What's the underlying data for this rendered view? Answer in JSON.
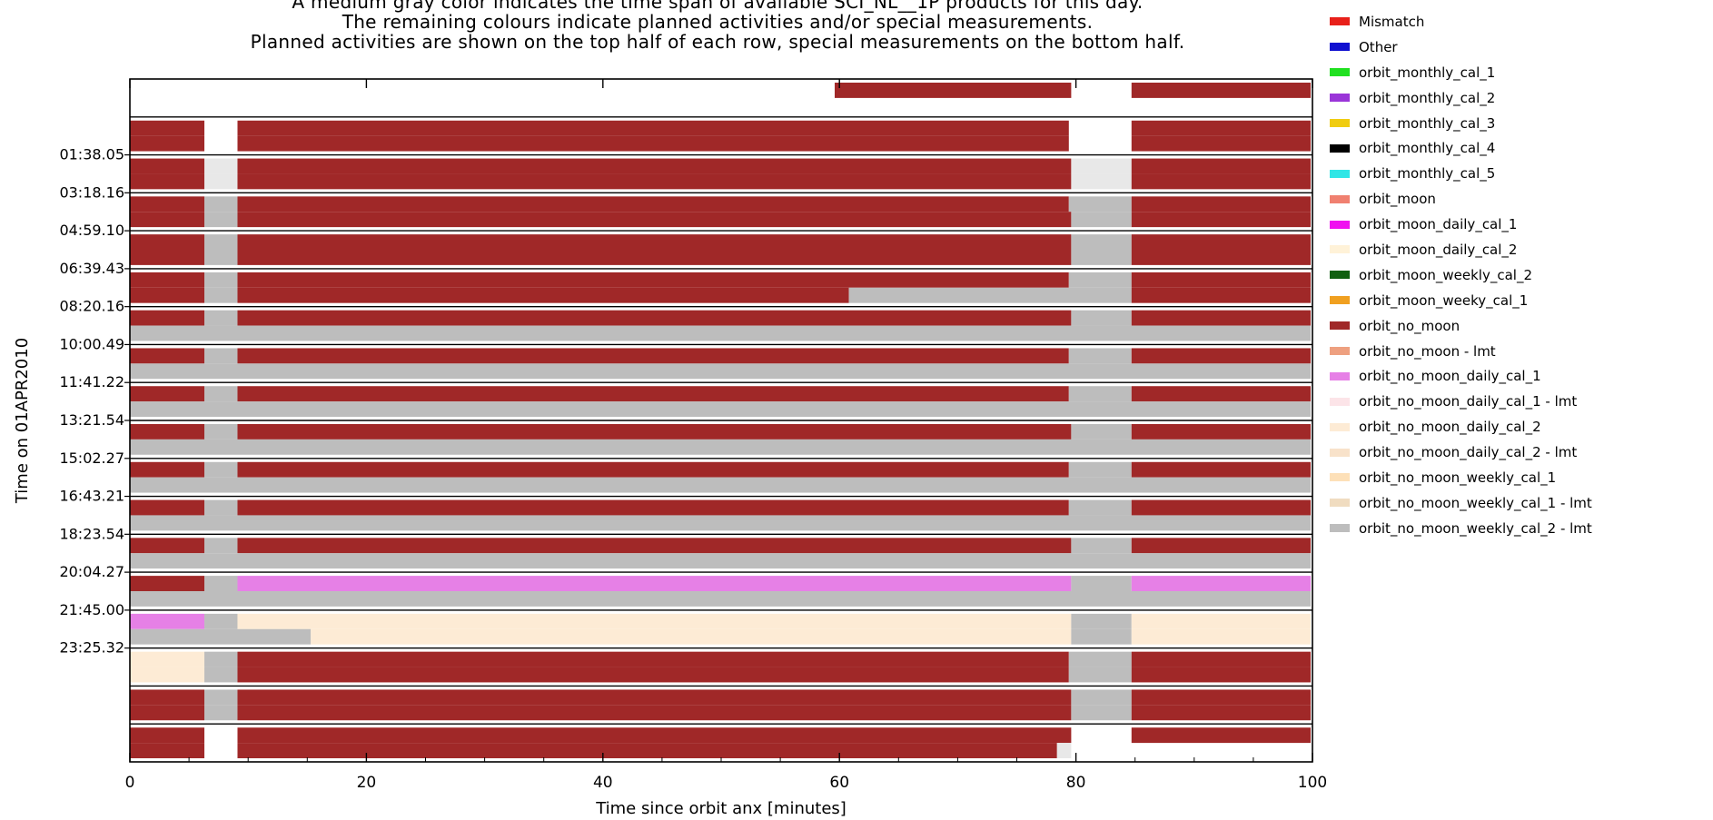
{
  "header": {
    "lines": [
      "A medium gray color indicates the time span of available SCI_NL__1P products for this day.",
      "The remaining colours indicate planned activities and/or special measurements.",
      "Planned activities are shown on the top half of each row, special measurements on the bottom half."
    ]
  },
  "legend": [
    {
      "label": "Mismatch",
      "color": "#e8201a"
    },
    {
      "label": "Other",
      "color": "#1010d0"
    },
    {
      "label": "orbit_monthly_cal_1",
      "color": "#20e020"
    },
    {
      "label": "orbit_monthly_cal_2",
      "color": "#9a35d8"
    },
    {
      "label": "orbit_monthly_cal_3",
      "color": "#f0cc10"
    },
    {
      "label": "orbit_monthly_cal_4",
      "color": "#000000"
    },
    {
      "label": "orbit_monthly_cal_5",
      "color": "#30e6e6"
    },
    {
      "label": "orbit_moon",
      "color": "#f08070"
    },
    {
      "label": "orbit_moon_daily_cal_1",
      "color": "#f010f0"
    },
    {
      "label": "orbit_moon_daily_cal_2",
      "color": "#fff2d8"
    },
    {
      "label": "orbit_moon_weekly_cal_2",
      "color": "#106010"
    },
    {
      "label": "orbit_moon_weeky_cal_1",
      "color": "#f0a020"
    },
    {
      "label": "orbit_no_moon",
      "color": "#a02828"
    },
    {
      "label": "orbit_no_moon - lmt",
      "color": "#eea080"
    },
    {
      "label": "orbit_no_moon_daily_cal_1",
      "color": "#e680e6"
    },
    {
      "label": "orbit_no_moon_daily_cal_1 - lmt",
      "color": "#fce4e8"
    },
    {
      "label": "orbit_no_moon_daily_cal_2",
      "color": "#fdebd5"
    },
    {
      "label": "orbit_no_moon_daily_cal_2 - lmt",
      "color": "#f8e2ca"
    },
    {
      "label": "orbit_no_moon_weekly_cal_1",
      "color": "#fde0b8"
    },
    {
      "label": "orbit_no_moon_weekly_cal_1 - lmt",
      "color": "#f0dcc0"
    },
    {
      "label": "orbit_no_moon_weekly_cal_2 - lmt",
      "color": "#bdbdbd"
    }
  ],
  "chart_data": {
    "type": "timeline",
    "xlabel": "Time since orbit anx [minutes]",
    "ylabel": "Time on 01APR2010",
    "xlim": [
      0,
      100
    ],
    "xticks": [
      0,
      20,
      40,
      60,
      80,
      100
    ],
    "yticks": [
      "01:38.05",
      "03:18.16",
      "04:59.10",
      "06:39.43",
      "08:20.16",
      "10:00.49",
      "11:41.22",
      "13:21.54",
      "15:02.27",
      "16:43.21",
      "18:23.54",
      "20:04.27",
      "21:45.00",
      "23:25.32"
    ],
    "colors": {
      "nm": "#a02828",
      "gray": "#bdbdbd",
      "lgray": "#e8e8e8",
      "pink": "#e680e6",
      "cream": "#fdebd5"
    },
    "rows": [
      {
        "top": [
          [
            59.6,
            79.6,
            "nm"
          ],
          [
            84.7,
            100.8,
            "nm"
          ]
        ],
        "bottom": []
      },
      {
        "top": [
          [
            0,
            6.3,
            "nm"
          ],
          [
            9.1,
            79.4,
            "nm"
          ],
          [
            84.7,
            100.8,
            "nm"
          ]
        ],
        "bottom": [
          [
            0,
            6.3,
            "nm"
          ],
          [
            9.1,
            79.4,
            "nm"
          ],
          [
            84.7,
            100.8,
            "nm"
          ]
        ]
      },
      {
        "top": [
          [
            0,
            6.3,
            "nm"
          ],
          [
            6.3,
            9.1,
            "lgray"
          ],
          [
            9.1,
            79.6,
            "nm"
          ],
          [
            79.6,
            84.7,
            "lgray"
          ],
          [
            84.7,
            100.8,
            "nm"
          ]
        ],
        "bottom": [
          [
            0,
            6.3,
            "nm"
          ],
          [
            6.3,
            9.1,
            "lgray"
          ],
          [
            9.1,
            79.6,
            "nm"
          ],
          [
            79.6,
            84.7,
            "lgray"
          ],
          [
            84.7,
            100.8,
            "nm"
          ]
        ]
      },
      {
        "top": [
          [
            0,
            6.3,
            "nm"
          ],
          [
            6.3,
            9.1,
            "gray"
          ],
          [
            9.1,
            79.4,
            "nm"
          ],
          [
            79.4,
            84.7,
            "gray"
          ],
          [
            84.7,
            100.8,
            "nm"
          ]
        ],
        "bottom": [
          [
            0,
            6.3,
            "nm"
          ],
          [
            6.3,
            9.1,
            "gray"
          ],
          [
            9.1,
            79.6,
            "nm"
          ],
          [
            79.6,
            84.7,
            "gray"
          ],
          [
            84.7,
            100.8,
            "nm"
          ]
        ]
      },
      {
        "top": [
          [
            0,
            6.3,
            "nm"
          ],
          [
            6.3,
            9.1,
            "gray"
          ],
          [
            9.1,
            79.6,
            "nm"
          ],
          [
            79.6,
            84.7,
            "gray"
          ],
          [
            84.7,
            100.8,
            "nm"
          ]
        ],
        "bottom": [
          [
            0,
            6.3,
            "nm"
          ],
          [
            6.3,
            9.1,
            "gray"
          ],
          [
            9.1,
            79.6,
            "nm"
          ],
          [
            79.6,
            84.7,
            "gray"
          ],
          [
            84.7,
            100.8,
            "nm"
          ]
        ]
      },
      {
        "top": [
          [
            0,
            6.3,
            "nm"
          ],
          [
            6.3,
            9.1,
            "gray"
          ],
          [
            9.1,
            79.4,
            "nm"
          ],
          [
            79.4,
            84.7,
            "gray"
          ],
          [
            84.7,
            100.8,
            "nm"
          ]
        ],
        "bottom": [
          [
            0,
            6.3,
            "nm"
          ],
          [
            6.3,
            9.1,
            "gray"
          ],
          [
            9.1,
            60.8,
            "nm"
          ],
          [
            60.8,
            84.7,
            "gray"
          ],
          [
            84.7,
            100.8,
            "nm"
          ]
        ]
      },
      {
        "top": [
          [
            0,
            6.3,
            "nm"
          ],
          [
            6.3,
            9.1,
            "gray"
          ],
          [
            9.1,
            79.6,
            "nm"
          ],
          [
            79.6,
            84.7,
            "gray"
          ],
          [
            84.7,
            100.8,
            "nm"
          ]
        ],
        "bottom": [
          [
            0,
            100.8,
            "gray"
          ]
        ]
      },
      {
        "top": [
          [
            0,
            6.3,
            "nm"
          ],
          [
            6.3,
            9.1,
            "gray"
          ],
          [
            9.1,
            79.4,
            "nm"
          ],
          [
            79.4,
            84.7,
            "gray"
          ],
          [
            84.7,
            100.8,
            "nm"
          ]
        ],
        "bottom": [
          [
            0,
            100.8,
            "gray"
          ]
        ]
      },
      {
        "top": [
          [
            0,
            6.3,
            "nm"
          ],
          [
            6.3,
            9.1,
            "gray"
          ],
          [
            9.1,
            79.4,
            "nm"
          ],
          [
            79.4,
            84.7,
            "gray"
          ],
          [
            84.7,
            100.8,
            "nm"
          ]
        ],
        "bottom": [
          [
            0,
            100.8,
            "gray"
          ]
        ]
      },
      {
        "top": [
          [
            0,
            6.3,
            "nm"
          ],
          [
            6.3,
            9.1,
            "gray"
          ],
          [
            9.1,
            79.6,
            "nm"
          ],
          [
            79.6,
            84.7,
            "gray"
          ],
          [
            84.7,
            100.8,
            "nm"
          ]
        ],
        "bottom": [
          [
            0,
            100.8,
            "gray"
          ]
        ]
      },
      {
        "top": [
          [
            0,
            6.3,
            "nm"
          ],
          [
            6.3,
            9.1,
            "gray"
          ],
          [
            9.1,
            79.4,
            "nm"
          ],
          [
            79.4,
            84.7,
            "gray"
          ],
          [
            84.7,
            100.8,
            "nm"
          ]
        ],
        "bottom": [
          [
            0,
            100.8,
            "gray"
          ]
        ]
      },
      {
        "top": [
          [
            0,
            6.3,
            "nm"
          ],
          [
            6.3,
            9.1,
            "gray"
          ],
          [
            9.1,
            79.4,
            "nm"
          ],
          [
            79.4,
            84.7,
            "gray"
          ],
          [
            84.7,
            100.8,
            "nm"
          ]
        ],
        "bottom": [
          [
            0,
            100.8,
            "gray"
          ]
        ]
      },
      {
        "top": [
          [
            0,
            6.3,
            "nm"
          ],
          [
            6.3,
            9.1,
            "gray"
          ],
          [
            9.1,
            79.6,
            "nm"
          ],
          [
            79.6,
            84.7,
            "gray"
          ],
          [
            84.7,
            100.8,
            "nm"
          ]
        ],
        "bottom": [
          [
            0,
            100.8,
            "gray"
          ]
        ]
      },
      {
        "top": [
          [
            0,
            6.3,
            "nm"
          ],
          [
            6.3,
            9.1,
            "gray"
          ],
          [
            9.1,
            79.6,
            "pink"
          ],
          [
            79.6,
            84.7,
            "gray"
          ],
          [
            84.7,
            100.8,
            "pink"
          ]
        ],
        "bottom": [
          [
            0,
            100.8,
            "gray"
          ]
        ]
      },
      {
        "top": [
          [
            0,
            6.3,
            "pink"
          ],
          [
            6.3,
            9.1,
            "gray"
          ],
          [
            9.1,
            79.6,
            "cream"
          ],
          [
            79.6,
            84.7,
            "gray"
          ],
          [
            84.7,
            100.8,
            "cream"
          ]
        ],
        "bottom": [
          [
            0,
            15.3,
            "gray"
          ],
          [
            15.3,
            79.6,
            "cream"
          ],
          [
            79.6,
            84.7,
            "gray"
          ],
          [
            84.7,
            100.8,
            "cream"
          ]
        ]
      },
      {
        "top": [
          [
            0,
            6.3,
            "cream"
          ],
          [
            6.3,
            9.1,
            "gray"
          ],
          [
            9.1,
            79.4,
            "nm"
          ],
          [
            79.4,
            84.7,
            "gray"
          ],
          [
            84.7,
            100.8,
            "nm"
          ]
        ],
        "bottom": [
          [
            0,
            6.3,
            "cream"
          ],
          [
            6.3,
            9.1,
            "gray"
          ],
          [
            9.1,
            79.4,
            "nm"
          ],
          [
            79.4,
            84.7,
            "gray"
          ],
          [
            84.7,
            100.8,
            "nm"
          ]
        ]
      },
      {
        "top": [
          [
            0,
            6.3,
            "nm"
          ],
          [
            6.3,
            9.1,
            "gray"
          ],
          [
            9.1,
            79.6,
            "nm"
          ],
          [
            79.6,
            84.7,
            "gray"
          ],
          [
            84.7,
            100.8,
            "nm"
          ]
        ],
        "bottom": [
          [
            0,
            6.3,
            "nm"
          ],
          [
            6.3,
            9.1,
            "gray"
          ],
          [
            9.1,
            79.6,
            "nm"
          ],
          [
            79.6,
            84.7,
            "gray"
          ],
          [
            84.7,
            100.8,
            "nm"
          ]
        ]
      },
      {
        "top": [
          [
            0,
            6.3,
            "nm"
          ],
          [
            9.1,
            79.6,
            "nm"
          ],
          [
            84.7,
            100.8,
            "nm"
          ]
        ],
        "bottom": [
          [
            0,
            6.3,
            "nm"
          ],
          [
            9.1,
            78.4,
            "nm"
          ],
          [
            78.4,
            79.6,
            "lgray"
          ]
        ]
      }
    ]
  }
}
